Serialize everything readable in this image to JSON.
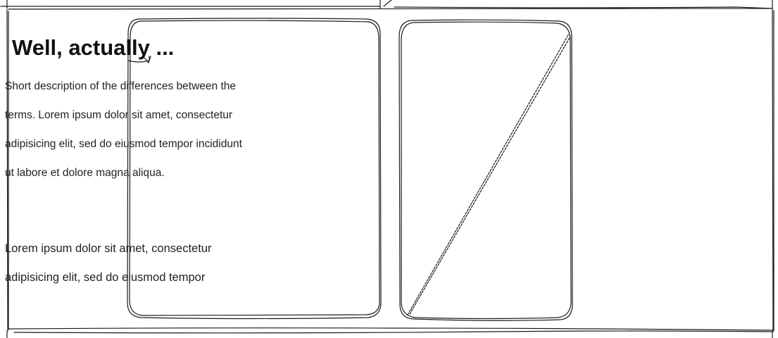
{
  "card": {
    "title": "Well, actually ...",
    "description": "Short description of the differences between the terms. Lorem ipsum dolor sit amet, consectetur adipisicing elit, sed do eiusmod tempor incididunt ut labore et dolore magna aliqua.",
    "body": "Lorem ipsum dolor sit amet, consectetur adipisicing elit, sed do eiusmod tempor"
  },
  "image_placeholder": {
    "icon": "image-placeholder-icon"
  },
  "colors": {
    "stroke": "#1a1a1a",
    "background": "#ffffff"
  }
}
